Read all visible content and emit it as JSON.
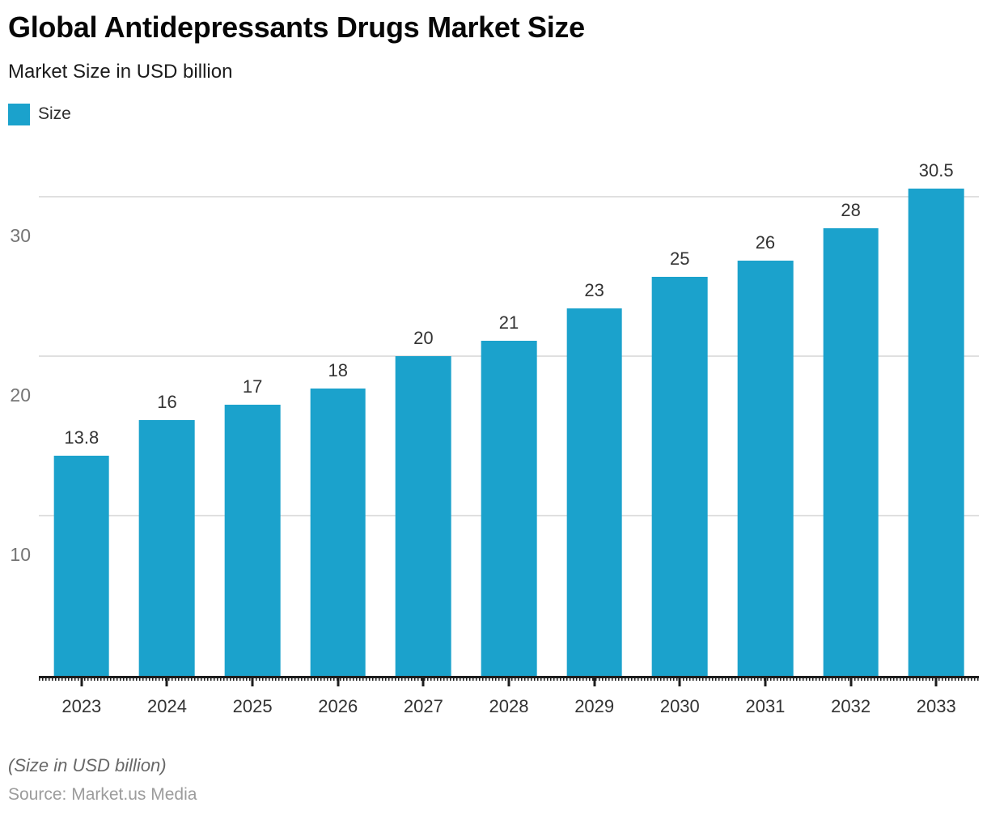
{
  "header": {
    "title": "Global Antidepressants Drugs Market Size",
    "subtitle": "Market Size in USD billion"
  },
  "legend": {
    "label": "Size"
  },
  "footer": {
    "note": "(Size in USD billion)",
    "source": "Source: Market.us Media"
  },
  "chart_data": {
    "type": "bar",
    "title": "Global Antidepressants Drugs Market Size",
    "subtitle": "Market Size in USD billion",
    "series_name": "Size",
    "categories": [
      "2023",
      "2024",
      "2025",
      "2026",
      "2027",
      "2028",
      "2029",
      "2030",
      "2031",
      "2032",
      "2033"
    ],
    "values": [
      13.8,
      16,
      17,
      18,
      20,
      21,
      23,
      25,
      26,
      28,
      30.5
    ],
    "xlabel": "",
    "ylabel": "Market Size in USD billion",
    "ylim": [
      0,
      33
    ],
    "yticks": [
      10,
      20,
      30
    ],
    "grid": true,
    "legend_position": "top-left",
    "bar_color": "#1BA2CC",
    "grid_color": "#e0e0e0",
    "axis_color": "#1d1d1d",
    "value_label_color": "#333333",
    "ytick_color": "#757575"
  }
}
